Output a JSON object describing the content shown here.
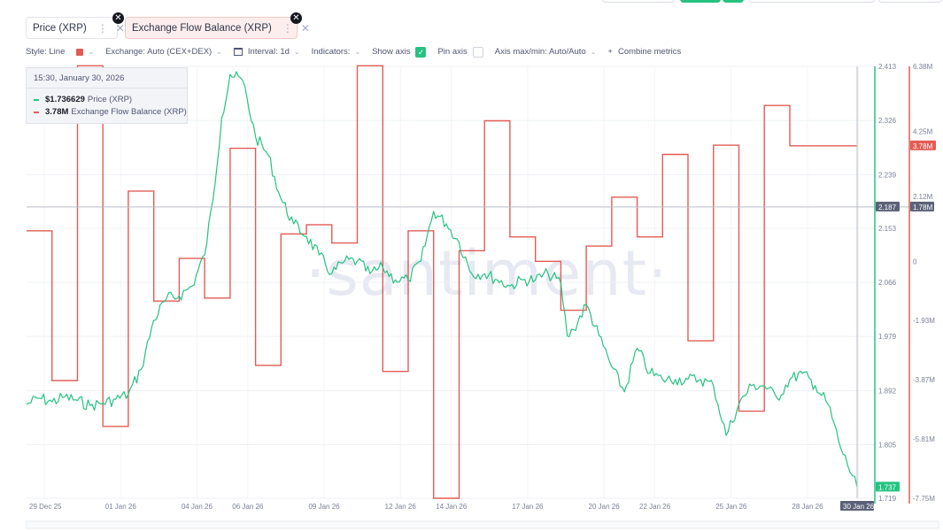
{
  "metric_tabs": [
    {
      "label": "Price (XRP)",
      "color": "#26c281"
    },
    {
      "label": "Exchange Flow Balance (XRP)",
      "color": "#e25c55"
    }
  ],
  "toolbar": {
    "style_label": "Style: Line",
    "exchange_label": "Exchange: Auto (CEX+DEX)",
    "interval_label": "Interval: 1d",
    "indicators_label": "Indicators:",
    "show_axis_label": "Show axis",
    "pin_axis_label": "Pin axis",
    "axis_minmax_label": "Axis max/min: Auto/Auto",
    "combine_label": "Combine metrics"
  },
  "tooltip": {
    "time": "15:30, January 30, 2026",
    "rows": [
      {
        "value": "$1.736629",
        "label": "Price (XRP)",
        "color": "#26c281"
      },
      {
        "value": "3.78M",
        "label": "Exchange Flow Balance (XRP)",
        "color": "#e25c55"
      }
    ]
  },
  "watermark": "·santiment·",
  "chart_data": {
    "type": "line",
    "x_tick_labels": [
      "29 Dec 25",
      "01 Jan 26",
      "04 Jan 26",
      "06 Jan 26",
      "09 Jan 26",
      "12 Jan 26",
      "14 Jan 26",
      "17 Jan 26",
      "20 Jan 26",
      "22 Jan 26",
      "25 Jan 26",
      "28 Jan 26",
      "30 Jan 26"
    ],
    "x_range": [
      "2025-12-29",
      "2026-01-30"
    ],
    "price_axis": {
      "ticks": [
        "2.413",
        "2.326",
        "2.239",
        "2.153",
        "2.066",
        "1.979",
        "1.892",
        "1.805",
        "1.719"
      ],
      "range": [
        1.719,
        2.413
      ],
      "current_label": "1.737",
      "crosshair_label": "2.187"
    },
    "flow_axis": {
      "ticks": [
        "6.38M",
        "4.25M",
        "2.12M",
        "0",
        "-1.93M",
        "-3.87M",
        "-5.81M",
        "-7.75M"
      ],
      "range": [
        -7.75,
        6.38
      ],
      "unit": "M",
      "current_label": "3.78M",
      "crosshair_label": "1.78M"
    },
    "crosshair_value": 2.187,
    "series": [
      {
        "name": "Price (XRP)",
        "color": "#26c281",
        "axis": "price",
        "points": [
          [
            "2025-12-29 00:00",
            1.87
          ],
          [
            "2025-12-29 12:00",
            1.88
          ],
          [
            "2025-12-30 00:00",
            1.874
          ],
          [
            "2025-12-30 12:00",
            1.882
          ],
          [
            "2025-12-31 00:00",
            1.876
          ],
          [
            "2025-12-31 12:00",
            1.868
          ],
          [
            "2026-01-01 00:00",
            1.872
          ],
          [
            "2026-01-01 12:00",
            1.878
          ],
          [
            "2026-01-02 00:00",
            1.886
          ],
          [
            "2026-01-02 12:00",
            1.926
          ],
          [
            "2026-01-03 00:00",
            2.005
          ],
          [
            "2026-01-03 12:00",
            2.04
          ],
          [
            "2026-01-04 00:00",
            2.044
          ],
          [
            "2026-01-04 12:00",
            2.06
          ],
          [
            "2026-01-05 00:00",
            2.11
          ],
          [
            "2026-01-05 08:00",
            2.2
          ],
          [
            "2026-01-05 16:00",
            2.33
          ],
          [
            "2026-01-06 00:00",
            2.4
          ],
          [
            "2026-01-06 12:00",
            2.39
          ],
          [
            "2026-01-07 00:00",
            2.3
          ],
          [
            "2026-01-07 12:00",
            2.27
          ],
          [
            "2026-01-08 00:00",
            2.2
          ],
          [
            "2026-01-08 12:00",
            2.16
          ],
          [
            "2026-01-09 00:00",
            2.14
          ],
          [
            "2026-01-09 12:00",
            2.11
          ],
          [
            "2026-01-10 00:00",
            2.08
          ],
          [
            "2026-01-10 12:00",
            2.1
          ],
          [
            "2026-01-11 00:00",
            2.1
          ],
          [
            "2026-01-11 12:00",
            2.08
          ],
          [
            "2026-01-12 00:00",
            2.09
          ],
          [
            "2026-01-12 12:00",
            2.07
          ],
          [
            "2026-01-13 00:00",
            2.07
          ],
          [
            "2026-01-13 12:00",
            2.1
          ],
          [
            "2026-01-14 00:00",
            2.18
          ],
          [
            "2026-01-14 12:00",
            2.16
          ],
          [
            "2026-01-15 00:00",
            2.13
          ],
          [
            "2026-01-15 12:00",
            2.08
          ],
          [
            "2026-01-16 00:00",
            2.08
          ],
          [
            "2026-01-16 12:00",
            2.07
          ],
          [
            "2026-01-17 00:00",
            2.06
          ],
          [
            "2026-01-17 12:00",
            2.07
          ],
          [
            "2026-01-18 00:00",
            2.07
          ],
          [
            "2026-01-18 12:00",
            2.08
          ],
          [
            "2026-01-19 00:00",
            2.065
          ],
          [
            "2026-01-19 06:00",
            1.98
          ],
          [
            "2026-01-19 12:00",
            1.99
          ],
          [
            "2026-01-20 00:00",
            2.03
          ],
          [
            "2026-01-20 12:00",
            1.98
          ],
          [
            "2026-01-21 00:00",
            1.93
          ],
          [
            "2026-01-21 12:00",
            1.89
          ],
          [
            "2026-01-22 00:00",
            1.96
          ],
          [
            "2026-01-22 12:00",
            1.92
          ],
          [
            "2026-01-23 00:00",
            1.91
          ],
          [
            "2026-01-23 12:00",
            1.91
          ],
          [
            "2026-01-24 00:00",
            1.91
          ],
          [
            "2026-01-24 12:00",
            1.91
          ],
          [
            "2026-01-25 00:00",
            1.9
          ],
          [
            "2026-01-25 12:00",
            1.82
          ],
          [
            "2026-01-26 00:00",
            1.87
          ],
          [
            "2026-01-26 12:00",
            1.9
          ],
          [
            "2026-01-27 00:00",
            1.9
          ],
          [
            "2026-01-27 12:00",
            1.88
          ],
          [
            "2026-01-28 00:00",
            1.91
          ],
          [
            "2026-01-28 12:00",
            1.92
          ],
          [
            "2026-01-29 00:00",
            1.9
          ],
          [
            "2026-01-29 12:00",
            1.87
          ],
          [
            "2026-01-30 00:00",
            1.8
          ],
          [
            "2026-01-30 15:30",
            1.737
          ]
        ]
      },
      {
        "name": "Exchange Flow Balance (XRP)",
        "color": "#e25c55",
        "axis": "flow",
        "unit": "M",
        "steps": [
          [
            "2025-12-29",
            1.0
          ],
          [
            "2025-12-30",
            -3.9
          ],
          [
            "2025-12-31",
            6.4
          ],
          [
            "2026-01-01",
            -5.4
          ],
          [
            "2026-01-02",
            2.3
          ],
          [
            "2026-01-03",
            -1.3
          ],
          [
            "2026-01-04",
            0.1
          ],
          [
            "2026-01-05",
            -1.2
          ],
          [
            "2026-01-06",
            3.7
          ],
          [
            "2026-01-07",
            -3.4
          ],
          [
            "2026-01-08",
            0.9
          ],
          [
            "2026-01-09",
            1.2
          ],
          [
            "2026-01-10",
            0.6
          ],
          [
            "2026-01-11",
            6.4
          ],
          [
            "2026-01-12",
            -3.6
          ],
          [
            "2026-01-13",
            1.0
          ],
          [
            "2026-01-14",
            -7.75
          ],
          [
            "2026-01-15",
            0.35
          ],
          [
            "2026-01-16",
            4.6
          ],
          [
            "2026-01-17",
            0.8
          ],
          [
            "2026-01-18",
            0.0
          ],
          [
            "2026-01-19",
            -1.6
          ],
          [
            "2026-01-20",
            0.5
          ],
          [
            "2026-01-21",
            2.1
          ],
          [
            "2026-01-22",
            0.8
          ],
          [
            "2026-01-23",
            3.5
          ],
          [
            "2026-01-24",
            -2.6
          ],
          [
            "2026-01-25",
            3.8
          ],
          [
            "2026-01-26",
            -4.9
          ],
          [
            "2026-01-27",
            5.1
          ],
          [
            "2026-01-28",
            3.78
          ]
        ]
      }
    ],
    "legend_position": "top-left",
    "grid": true
  }
}
